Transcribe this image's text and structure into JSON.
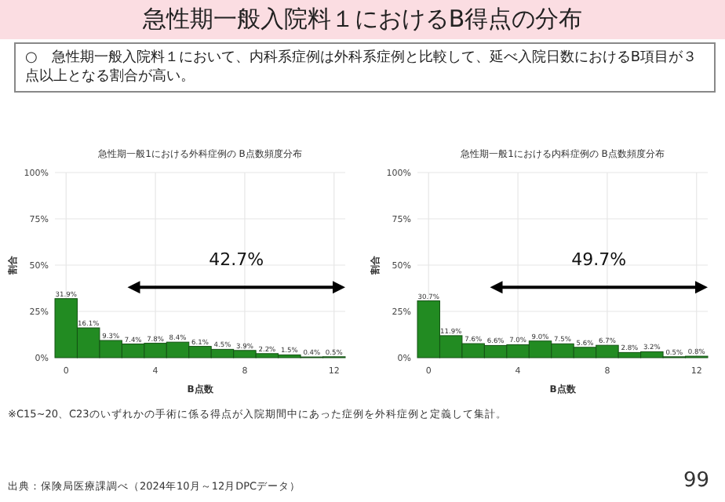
{
  "chart_data": [
    {
      "type": "other",
      "title": "急性期一般入院料１におけるB得点の分布",
      "subtitle": "○　急性期一般入院料１において、内科系症例は外科系症例と比較して、延べ入院日数におけるB項目が３点以上となる割合が高い。",
      "annotations": [
        "※C15~20、C23のいずれかの手術に係る得点が入院期間中にあった症例を外科症例と定義して集計。",
        "出典：保険局医療課調べ（2024年10月～12月DPCデータ）",
        "99"
      ]
    },
    {
      "type": "bar",
      "title": "急性期一般1における外科症例の B点数頻度分布",
      "xlabel": "B点数",
      "ylabel": "割合",
      "x": [
        0,
        1,
        2,
        3,
        4,
        5,
        6,
        7,
        8,
        9,
        10,
        11,
        12
      ],
      "series": [
        {
          "color": "#228b22",
          "values": [
            31.9,
            16.1,
            9.3,
            7.4,
            7.8,
            8.4,
            6.1,
            4.5,
            3.9,
            2.2,
            1.5,
            0.4,
            0.5
          ],
          "value_labels": [
            "31.9%",
            "16.1%",
            "9.3%",
            "7.4%",
            "7.8%",
            "8.4%",
            "6.1%",
            "4.5%",
            "3.9%",
            "2.2%",
            "1.5%",
            "0.4%",
            "0.5%"
          ]
        }
      ],
      "xlim": [
        -0.5,
        12.5
      ],
      "xticks": [
        0,
        4,
        8,
        12
      ],
      "ylim": [
        0,
        100
      ],
      "yticks": [
        {
          "value": 0,
          "label": "0%"
        },
        {
          "value": 25,
          "label": "25%"
        },
        {
          "value": 50,
          "label": "50%"
        },
        {
          "value": 75,
          "label": "75%"
        },
        {
          "value": 100,
          "label": "100%"
        }
      ],
      "grid": true,
      "annotations": [
        "42.7%"
      ]
    },
    {
      "type": "bar",
      "title": "急性期一般1における内科症例の B点数頻度分布",
      "xlabel": "B点数",
      "ylabel": "割合",
      "x": [
        0,
        1,
        2,
        3,
        4,
        5,
        6,
        7,
        8,
        9,
        10,
        11,
        12
      ],
      "series": [
        {
          "color": "#228b22",
          "values": [
            30.7,
            11.9,
            7.6,
            6.6,
            7.0,
            9.0,
            7.5,
            5.6,
            6.7,
            2.8,
            3.2,
            0.5,
            0.8
          ],
          "value_labels": [
            "30.7%",
            "11.9%",
            "7.6%",
            "6.6%",
            "7.0%",
            "9.0%",
            "7.5%",
            "5.6%",
            "6.7%",
            "2.8%",
            "3.2%",
            "0.5%",
            "0.8%"
          ]
        }
      ],
      "xlim": [
        -0.5,
        12.5
      ],
      "xticks": [
        0,
        4,
        8,
        12
      ],
      "ylim": [
        0,
        100
      ],
      "yticks": [
        {
          "value": 0,
          "label": "0%"
        },
        {
          "value": 25,
          "label": "25%"
        },
        {
          "value": 50,
          "label": "50%"
        },
        {
          "value": 75,
          "label": "75%"
        },
        {
          "value": 100,
          "label": "100%"
        }
      ],
      "grid": true,
      "annotations": [
        "49.7%"
      ]
    }
  ]
}
